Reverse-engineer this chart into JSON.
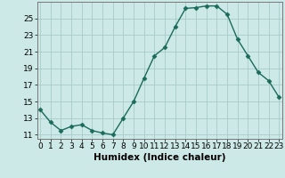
{
  "x": [
    0,
    1,
    2,
    3,
    4,
    5,
    6,
    7,
    8,
    9,
    10,
    11,
    12,
    13,
    14,
    15,
    16,
    17,
    18,
    19,
    20,
    21,
    22,
    23
  ],
  "y": [
    14.0,
    12.5,
    11.5,
    12.0,
    12.2,
    11.5,
    11.2,
    11.0,
    13.0,
    15.0,
    17.8,
    20.5,
    21.5,
    24.0,
    26.2,
    26.3,
    26.5,
    26.5,
    25.5,
    22.5,
    20.5,
    18.5,
    17.5,
    15.5
  ],
  "line_color": "#1a6b5a",
  "marker": "D",
  "markersize": 2.5,
  "linewidth": 1.0,
  "bg_color": "#cce9e7",
  "grid_color": "#a8ccc9",
  "xlabel": "Humidex (Indice chaleur)",
  "ylim": [
    10.5,
    27.0
  ],
  "xlim": [
    -0.3,
    23.3
  ],
  "yticks": [
    11,
    13,
    15,
    17,
    19,
    21,
    23,
    25
  ],
  "xticks": [
    0,
    1,
    2,
    3,
    4,
    5,
    6,
    7,
    8,
    9,
    10,
    11,
    12,
    13,
    14,
    15,
    16,
    17,
    18,
    19,
    20,
    21,
    22,
    23
  ],
  "xtick_labels": [
    "0",
    "1",
    "2",
    "3",
    "4",
    "5",
    "6",
    "7",
    "8",
    "9",
    "10",
    "11",
    "12",
    "13",
    "14",
    "15",
    "16",
    "17",
    "18",
    "19",
    "20",
    "21",
    "22",
    "23"
  ],
  "tick_fontsize": 6.5,
  "xlabel_fontsize": 7.5
}
